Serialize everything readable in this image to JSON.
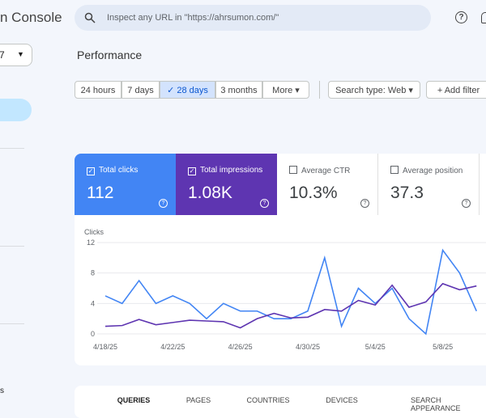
{
  "sidebar": {
    "brand": "n Console",
    "property": "7",
    "footer": "s"
  },
  "header": {
    "search_placeholder": "Inspect any URL in \"https://ahrsumon.com/\""
  },
  "page_title": "Performance",
  "toolbar": {
    "ranges": [
      "24 hours",
      "7 days",
      "28 days",
      "3 months",
      "More"
    ],
    "selected_range": "28 days",
    "search_type": "Search type: Web",
    "add_filter": "Add filter"
  },
  "metrics": [
    {
      "title": "Total clicks",
      "value": "112",
      "checked": true,
      "color": "#4285f4"
    },
    {
      "title": "Total impressions",
      "value": "1.08K",
      "checked": true,
      "color": "#5e35b1"
    },
    {
      "title": "Average CTR",
      "value": "10.3%",
      "checked": false
    },
    {
      "title": "Average position",
      "value": "37.3",
      "checked": false
    }
  ],
  "chart_data": {
    "type": "line",
    "y_label": "Clicks",
    "categories": [
      "4/18/25",
      null,
      null,
      null,
      "4/22/25",
      null,
      null,
      null,
      "4/26/25",
      null,
      null,
      null,
      "4/30/25",
      null,
      null,
      null,
      "5/4/25",
      null,
      null,
      null,
      "5/8/25",
      null,
      null
    ],
    "ylim": [
      0,
      12
    ],
    "yticks": [
      0,
      4,
      8,
      12
    ],
    "y2lim": [
      0,
      120
    ],
    "grid": true,
    "series": [
      {
        "color": "#4285f4",
        "values": [
          5,
          4,
          7,
          4,
          5,
          4,
          2,
          4,
          3,
          3,
          2,
          2,
          3,
          10,
          1,
          6,
          4,
          6,
          2,
          0,
          11,
          8,
          3
        ]
      },
      {
        "color": "#5e35b1",
        "axis": "y2",
        "values": [
          10,
          11,
          19,
          12,
          15,
          18,
          17,
          16,
          8,
          20,
          27,
          21,
          22,
          32,
          30,
          44,
          38,
          64,
          35,
          42,
          66,
          58,
          63
        ]
      }
    ]
  },
  "tabs": [
    "QUERIES",
    "PAGES",
    "COUNTRIES",
    "DEVICES",
    "SEARCH APPEARANCE"
  ]
}
